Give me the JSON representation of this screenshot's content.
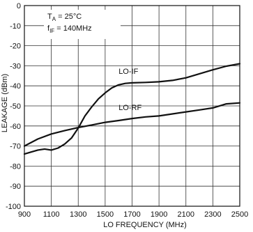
{
  "chart_data": {
    "type": "line",
    "xlabel": "LO FREQUENCY (MHz)",
    "ylabel": "LEAKAGE (dBm)",
    "xlim": [
      900,
      2500
    ],
    "ylim": [
      -100,
      0
    ],
    "x_ticks": [
      900,
      1100,
      1300,
      1500,
      1700,
      1900,
      2100,
      2300,
      2500
    ],
    "y_ticks": [
      0,
      -10,
      -20,
      -30,
      -40,
      -50,
      -60,
      -70,
      -80,
      -90,
      -100
    ],
    "grid": true,
    "conditions": {
      "ta_main": "T",
      "ta_sub": "A",
      "ta_rest": " = 25°C",
      "fif_main": "f",
      "fif_sub": "IF",
      "fif_rest": " = 140MHz"
    },
    "series": [
      {
        "name": "LO-IF",
        "x": [
          900,
          950,
          1000,
          1050,
          1100,
          1150,
          1200,
          1250,
          1300,
          1350,
          1400,
          1450,
          1500,
          1550,
          1600,
          1650,
          1700,
          1800,
          1900,
          2000,
          2100,
          2200,
          2300,
          2400,
          2500
        ],
        "y": [
          -74,
          -73,
          -72,
          -71.5,
          -72,
          -71,
          -69,
          -66,
          -61,
          -55,
          -50.5,
          -46.5,
          -43.5,
          -41,
          -39.5,
          -38.8,
          -38.5,
          -38.3,
          -38,
          -37.3,
          -36,
          -34,
          -32,
          -30.2,
          -29
        ]
      },
      {
        "name": "LO-RF",
        "x": [
          900,
          1000,
          1100,
          1200,
          1300,
          1400,
          1500,
          1600,
          1700,
          1800,
          1900,
          2000,
          2100,
          2200,
          2300,
          2400,
          2500
        ],
        "y": [
          -70,
          -66.5,
          -64,
          -62.3,
          -60.8,
          -59.5,
          -58.2,
          -57.3,
          -56.3,
          -55.5,
          -55,
          -54,
          -53,
          -52,
          -51,
          -49,
          -48.5
        ]
      }
    ]
  }
}
